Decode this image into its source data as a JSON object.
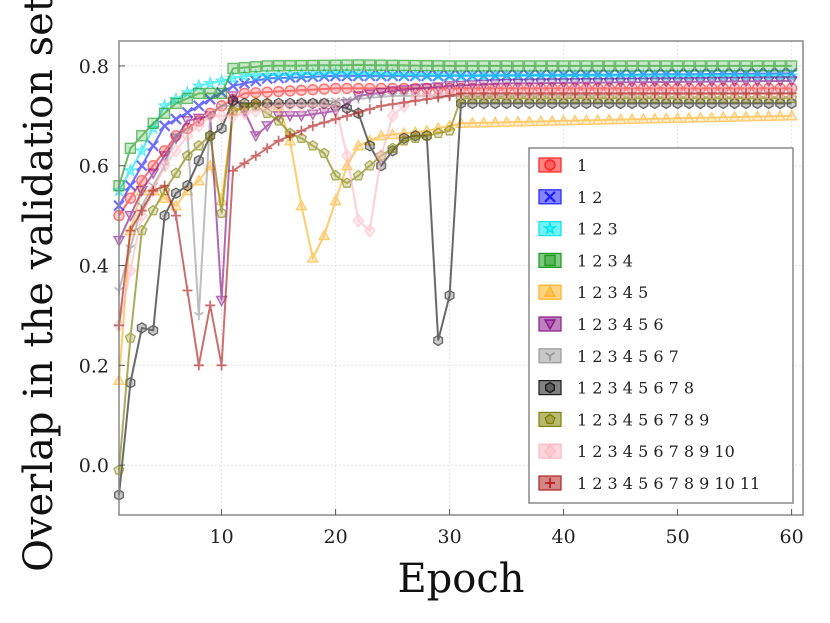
{
  "chart_data": {
    "type": "line",
    "title": "",
    "xlabel": "Epoch",
    "ylabel": "Overlap in the validation set",
    "xlim": [
      1,
      61
    ],
    "ylim": [
      -0.1,
      0.85
    ],
    "xticks": [
      10,
      20,
      30,
      40,
      50,
      60
    ],
    "yticks": [
      0.0,
      0.2,
      0.4,
      0.6,
      0.8
    ],
    "tick_labels_x": [
      "10",
      "20",
      "30",
      "40",
      "50",
      "60"
    ],
    "tick_labels_y": [
      "0.0",
      "0.2",
      "0.4",
      "0.6",
      "0.8"
    ],
    "grid": true,
    "legend_position": "center-right",
    "series": [
      {
        "name": "1",
        "color": "#ff2020",
        "marker": "circle",
        "marker_every": 1,
        "anchors": [
          [
            1,
            0.5
          ],
          [
            3,
            0.57
          ],
          [
            6,
            0.66
          ],
          [
            10,
            0.72
          ],
          [
            12,
            0.745
          ],
          [
            20,
            0.755
          ],
          [
            30,
            0.755
          ],
          [
            60,
            0.755
          ]
        ]
      },
      {
        "name": "1 2",
        "color": "#2020ff",
        "marker": "x",
        "marker_every": 1,
        "anchors": [
          [
            1,
            0.52
          ],
          [
            3,
            0.6
          ],
          [
            5,
            0.68
          ],
          [
            8,
            0.72
          ],
          [
            11,
            0.76
          ],
          [
            14,
            0.775
          ],
          [
            20,
            0.78
          ],
          [
            30,
            0.78
          ],
          [
            60,
            0.785
          ]
        ]
      },
      {
        "name": "1 2 3",
        "color": "#00e5ee",
        "marker": "star",
        "marker_every": 1,
        "anchors": [
          [
            1,
            0.55
          ],
          [
            3,
            0.63
          ],
          [
            5,
            0.72
          ],
          [
            8,
            0.76
          ],
          [
            10,
            0.77
          ],
          [
            12,
            0.78
          ],
          [
            20,
            0.785
          ],
          [
            30,
            0.78
          ],
          [
            60,
            0.78
          ]
        ]
      },
      {
        "name": "1 2 3 4",
        "color": "#1a9a1a",
        "marker": "square",
        "marker_every": 1,
        "anchors": [
          [
            1,
            0.56
          ],
          [
            2,
            0.635
          ],
          [
            4,
            0.685
          ],
          [
            6,
            0.725
          ],
          [
            8,
            0.745
          ],
          [
            10,
            0.745
          ],
          [
            11,
            0.795
          ],
          [
            14,
            0.8
          ],
          [
            22,
            0.802
          ],
          [
            30,
            0.8
          ],
          [
            31,
            0.8
          ],
          [
            60,
            0.8
          ]
        ]
      },
      {
        "name": "1 2 3 4 5",
        "color": "#ffb020",
        "marker": "triangle-up",
        "marker_every": 1,
        "anchors": [
          [
            1,
            0.17
          ],
          [
            2,
            0.47
          ],
          [
            3,
            0.55
          ],
          [
            4,
            0.55
          ],
          [
            6,
            0.52
          ],
          [
            7,
            0.55
          ],
          [
            8,
            0.57
          ],
          [
            9,
            0.6
          ],
          [
            10,
            0.53
          ],
          [
            11,
            0.71
          ],
          [
            13,
            0.73
          ],
          [
            15,
            0.72
          ],
          [
            16,
            0.65
          ],
          [
            17,
            0.52
          ],
          [
            18,
            0.415
          ],
          [
            19,
            0.46
          ],
          [
            20,
            0.53
          ],
          [
            21,
            0.6
          ],
          [
            22,
            0.64
          ],
          [
            24,
            0.66
          ],
          [
            26,
            0.665
          ],
          [
            28,
            0.67
          ],
          [
            30,
            0.68
          ],
          [
            31,
            0.685
          ],
          [
            40,
            0.69
          ],
          [
            50,
            0.695
          ],
          [
            60,
            0.7
          ]
        ]
      },
      {
        "name": "1 2 3 4 5 6",
        "color": "#8a1a8a",
        "marker": "triangle-down",
        "marker_every": 1,
        "anchors": [
          [
            1,
            0.45
          ],
          [
            3,
            0.55
          ],
          [
            5,
            0.62
          ],
          [
            7,
            0.69
          ],
          [
            9,
            0.7
          ],
          [
            10,
            0.33
          ],
          [
            11,
            0.74
          ],
          [
            12,
            0.71
          ],
          [
            13,
            0.66
          ],
          [
            15,
            0.7
          ],
          [
            17,
            0.7
          ],
          [
            20,
            0.71
          ],
          [
            22,
            0.74
          ],
          [
            25,
            0.75
          ],
          [
            30,
            0.76
          ],
          [
            35,
            0.765
          ],
          [
            60,
            0.77
          ]
        ]
      },
      {
        "name": "1 2 3 4 5 6 7",
        "color": "#9a9a9a",
        "marker": "tri",
        "marker_every": 1,
        "anchors": [
          [
            1,
            0.35
          ],
          [
            3,
            0.52
          ],
          [
            5,
            0.6
          ],
          [
            6,
            0.66
          ],
          [
            7,
            0.67
          ],
          [
            8,
            0.3
          ],
          [
            9,
            0.7
          ],
          [
            10,
            0.72
          ],
          [
            12,
            0.72
          ],
          [
            20,
            0.73
          ],
          [
            25,
            0.74
          ],
          [
            30,
            0.74
          ],
          [
            60,
            0.745
          ]
        ]
      },
      {
        "name": "1 2 3 4 5 6 7 8",
        "color": "#1a1a1a",
        "marker": "hexagon",
        "marker_every": 1,
        "anchors": [
          [
            1,
            -0.06
          ],
          [
            2,
            0.165
          ],
          [
            3,
            0.275
          ],
          [
            4,
            0.27
          ],
          [
            5,
            0.5
          ],
          [
            6,
            0.545
          ],
          [
            7,
            0.56
          ],
          [
            8,
            0.61
          ],
          [
            9,
            0.66
          ],
          [
            10,
            0.675
          ],
          [
            11,
            0.73
          ],
          [
            12,
            0.725
          ],
          [
            13,
            0.725
          ],
          [
            19,
            0.725
          ],
          [
            20,
            0.72
          ],
          [
            21,
            0.715
          ],
          [
            22,
            0.705
          ],
          [
            23,
            0.64
          ],
          [
            24,
            0.6
          ],
          [
            25,
            0.63
          ],
          [
            26,
            0.655
          ],
          [
            27,
            0.66
          ],
          [
            28,
            0.66
          ],
          [
            28.5,
            0.64
          ],
          [
            29,
            0.25
          ],
          [
            30,
            0.34
          ],
          [
            31,
            0.725
          ],
          [
            40,
            0.725
          ],
          [
            50,
            0.725
          ],
          [
            60,
            0.725
          ]
        ]
      },
      {
        "name": "1 2 3 4 5 6 7 8 9",
        "color": "#808000",
        "marker": "pentagon",
        "marker_every": 1,
        "anchors": [
          [
            1,
            -0.01
          ],
          [
            2,
            0.255
          ],
          [
            3,
            0.47
          ],
          [
            5,
            0.55
          ],
          [
            7,
            0.62
          ],
          [
            9,
            0.66
          ],
          [
            10,
            0.505
          ],
          [
            11,
            0.71
          ],
          [
            13,
            0.72
          ],
          [
            15,
            0.69
          ],
          [
            16,
            0.665
          ],
          [
            17,
            0.655
          ],
          [
            19,
            0.625
          ],
          [
            20,
            0.58
          ],
          [
            21,
            0.565
          ],
          [
            22,
            0.58
          ],
          [
            23,
            0.6
          ],
          [
            24,
            0.62
          ],
          [
            26,
            0.65
          ],
          [
            28,
            0.66
          ],
          [
            30,
            0.67
          ],
          [
            31,
            0.735
          ],
          [
            60,
            0.735
          ]
        ]
      },
      {
        "name": "1 2 3 4 5 6 7 8 9 10",
        "color": "#ffb6c1",
        "marker": "diamond",
        "marker_every": 1,
        "anchors": [
          [
            1,
            0.28
          ],
          [
            3,
            0.5
          ],
          [
            5,
            0.6
          ],
          [
            7,
            0.66
          ],
          [
            9,
            0.7
          ],
          [
            11,
            0.7
          ],
          [
            15,
            0.72
          ],
          [
            19,
            0.72
          ],
          [
            20,
            0.72
          ],
          [
            21,
            0.62
          ],
          [
            22,
            0.49
          ],
          [
            23,
            0.47
          ],
          [
            24,
            0.62
          ],
          [
            25,
            0.7
          ],
          [
            27,
            0.74
          ],
          [
            30,
            0.745
          ],
          [
            60,
            0.745
          ]
        ]
      },
      {
        "name": "1 2 3 4 5 6 7 8 9 10 11",
        "color": "#b22222",
        "marker": "plus",
        "marker_every": 1,
        "anchors": [
          [
            1,
            0.28
          ],
          [
            2,
            0.47
          ],
          [
            4,
            0.55
          ],
          [
            5,
            0.56
          ],
          [
            6,
            0.5
          ],
          [
            7,
            0.35
          ],
          [
            8,
            0.2
          ],
          [
            9,
            0.32
          ],
          [
            10,
            0.2
          ],
          [
            11,
            0.59
          ],
          [
            13,
            0.62
          ],
          [
            15,
            0.65
          ],
          [
            18,
            0.68
          ],
          [
            21,
            0.7
          ],
          [
            24,
            0.72
          ],
          [
            27,
            0.73
          ],
          [
            30,
            0.74
          ],
          [
            31,
            0.745
          ],
          [
            60,
            0.745
          ]
        ]
      }
    ]
  }
}
